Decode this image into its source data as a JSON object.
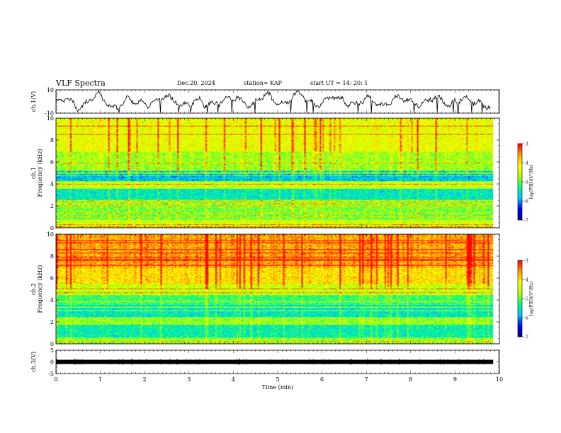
{
  "header": {
    "title": "VLF Spectra",
    "date": "Dec.20, 2024",
    "station": "station= KAP",
    "start": "start UT =  14: 20: 1"
  },
  "colors": {
    "spectrogram_scale": [
      "#00008c",
      "#0000ff",
      "#00c8ff",
      "#00ff80",
      "#b4ff00",
      "#ffff00",
      "#ffa000",
      "#ff0000"
    ]
  },
  "chart_data": [
    {
      "type": "line",
      "panel": "ch1-waveform",
      "ylabel": "ch.1(V)",
      "ylim": [
        -10,
        10
      ],
      "y_tick_labels": [
        "-10",
        "10"
      ],
      "xlim": [
        0,
        10
      ],
      "description_values": {
        "x_extent_min": [
          0,
          9.8
        ],
        "mean": 0
      }
    },
    {
      "type": "heatmap",
      "panel": "ch1-spectrogram",
      "ylabel": "ch.1 Frequency (kHz)",
      "xlim": [
        0,
        10
      ],
      "ylim": [
        0,
        10
      ],
      "y_tick_labels": [
        "0",
        "2",
        "4",
        "6",
        "8",
        "10"
      ],
      "colorbar": {
        "label": "log(PSD)(V²/Hz)",
        "range": [
          -7,
          -3
        ],
        "tick_labels": [
          "-3",
          "-4",
          "-5",
          "-6",
          "-7"
        ]
      }
    },
    {
      "type": "heatmap",
      "panel": "ch2-spectrogram",
      "ylabel": "ch.2 Frequency (kHz)",
      "xlim": [
        0,
        10
      ],
      "ylim": [
        0,
        10
      ],
      "y_tick_labels": [
        "0",
        "2",
        "4",
        "6",
        "8",
        "10"
      ],
      "colorbar": {
        "label": "log(PSD)(V²/Hz)",
        "range": [
          -7,
          -3
        ],
        "tick_labels": [
          "-3",
          "-4",
          "-5",
          "-6",
          "-7"
        ]
      }
    },
    {
      "type": "line",
      "panel": "ch3-waveform",
      "ylabel": "ch.3(V)",
      "xlabel": "Time (min)",
      "ylim": [
        -5,
        5
      ],
      "y_tick_labels": [
        "-5",
        "0",
        "5"
      ],
      "xlim": [
        0,
        10
      ],
      "x_tick_labels": [
        "0",
        "1",
        "2",
        "3",
        "4",
        "5",
        "6",
        "7",
        "8",
        "9",
        "10"
      ],
      "level": 0
    }
  ]
}
